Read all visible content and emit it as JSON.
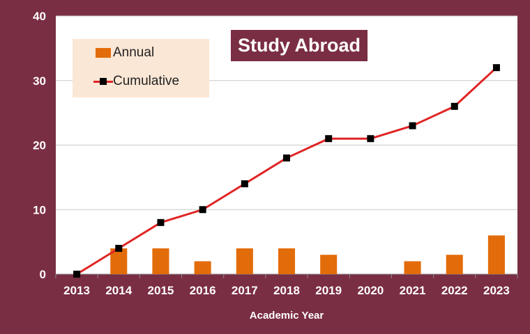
{
  "chart_data": {
    "type": "bar",
    "title": "Study Abroad",
    "xlabel": "Academic Year",
    "ylabel": "",
    "ylim": [
      0,
      40
    ],
    "yticks": [
      0,
      10,
      20,
      30,
      40
    ],
    "grid": true,
    "legend_position": "top-left",
    "categories": [
      "2013",
      "2014",
      "2015",
      "2016",
      "2017",
      "2018",
      "2019",
      "2020",
      "2021",
      "2022",
      "2023"
    ],
    "series": [
      {
        "name": "Annual",
        "type": "bar",
        "color": "#e36c0a",
        "values": [
          0,
          4,
          4,
          2,
          4,
          4,
          3,
          0,
          2,
          3,
          6
        ]
      },
      {
        "name": "Cumulative",
        "type": "line",
        "color": "#e02424",
        "marker_color": "#000000",
        "values": [
          0,
          4,
          8,
          10,
          14,
          18,
          21,
          21,
          23,
          26,
          32
        ]
      }
    ]
  },
  "colors": {
    "frame": "#7a2e43",
    "plot_background": "#ffffff",
    "legend_background": "#fbe7d5",
    "gridline": "#c8c8c8"
  }
}
